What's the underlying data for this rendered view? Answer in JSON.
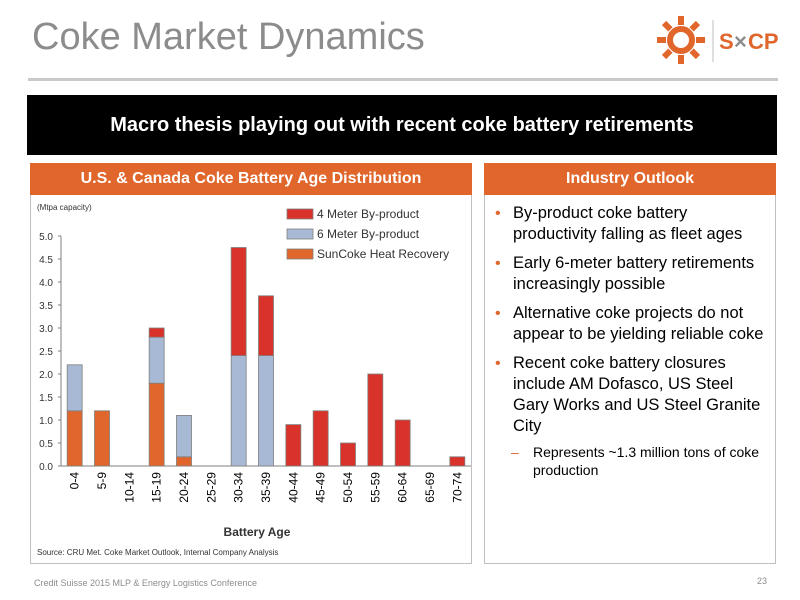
{
  "slide": {
    "title": "Coke Market Dynamics",
    "banner": "Macro thesis playing out with recent coke battery retirements",
    "footer": "Credit Suisse 2015 MLP & Energy Logistics Conference",
    "page_number": "23",
    "logo": {
      "text_s": "S",
      "text_cp": "CP",
      "icon": "sun-gear-icon",
      "color": "#e0662b"
    }
  },
  "left_panel": {
    "header": "U.S. & Canada Coke Battery Age Distribution"
  },
  "right_panel": {
    "header": "Industry Outlook",
    "bullets": [
      "By-product coke battery productivity falling as fleet ages",
      "Early 6-meter battery retirements increasingly possible",
      "Alternative coke projects do not appear to be yielding reliable coke",
      "Recent coke battery closures include AM Dofasco, US Steel Gary Works and US Steel Granite City"
    ],
    "sub_bullet": "Represents ~1.3 million tons of coke production"
  },
  "chart_data": {
    "type": "bar",
    "stacked": true,
    "unit_label": "(Mtpa capacity)",
    "xlabel": "Battery Age",
    "ylabel": "",
    "source": "Source:  CRU Met. Coke Market Outlook, Internal Company Analysis",
    "categories": [
      "0-4",
      "5-9",
      "10-14",
      "15-19",
      "20-24",
      "25-29",
      "30-34",
      "35-39",
      "40-44",
      "45-49",
      "50-54",
      "55-59",
      "60-64",
      "65-69",
      "70-74"
    ],
    "series": [
      {
        "name": "SunCoke Heat Recovery",
        "color": "#e0662b",
        "values": [
          1.2,
          1.2,
          0,
          1.8,
          0.2,
          0,
          0,
          0,
          0,
          0,
          0,
          0,
          0,
          0,
          0
        ]
      },
      {
        "name": "6 Meter By-product",
        "color": "#a8b9d6",
        "values": [
          1.0,
          0,
          0,
          1.0,
          0.9,
          0,
          2.4,
          2.4,
          0,
          0,
          0,
          0,
          0,
          0,
          0
        ]
      },
      {
        "name": "4 Meter By-product",
        "color": "#d9322a",
        "values": [
          0,
          0,
          0,
          0.2,
          0,
          0,
          2.35,
          1.3,
          0.9,
          1.2,
          0.5,
          2.0,
          1.0,
          0,
          0.2
        ]
      }
    ],
    "legend_order": [
      2,
      1,
      0
    ],
    "yticks": [
      "0.0",
      "0.5",
      "1.0",
      "1.5",
      "2.0",
      "2.5",
      "3.0",
      "3.5",
      "4.0",
      "4.5",
      "5.0"
    ],
    "ylim": [
      0,
      5.0
    ],
    "legend_position": "top-right",
    "grid": false
  }
}
